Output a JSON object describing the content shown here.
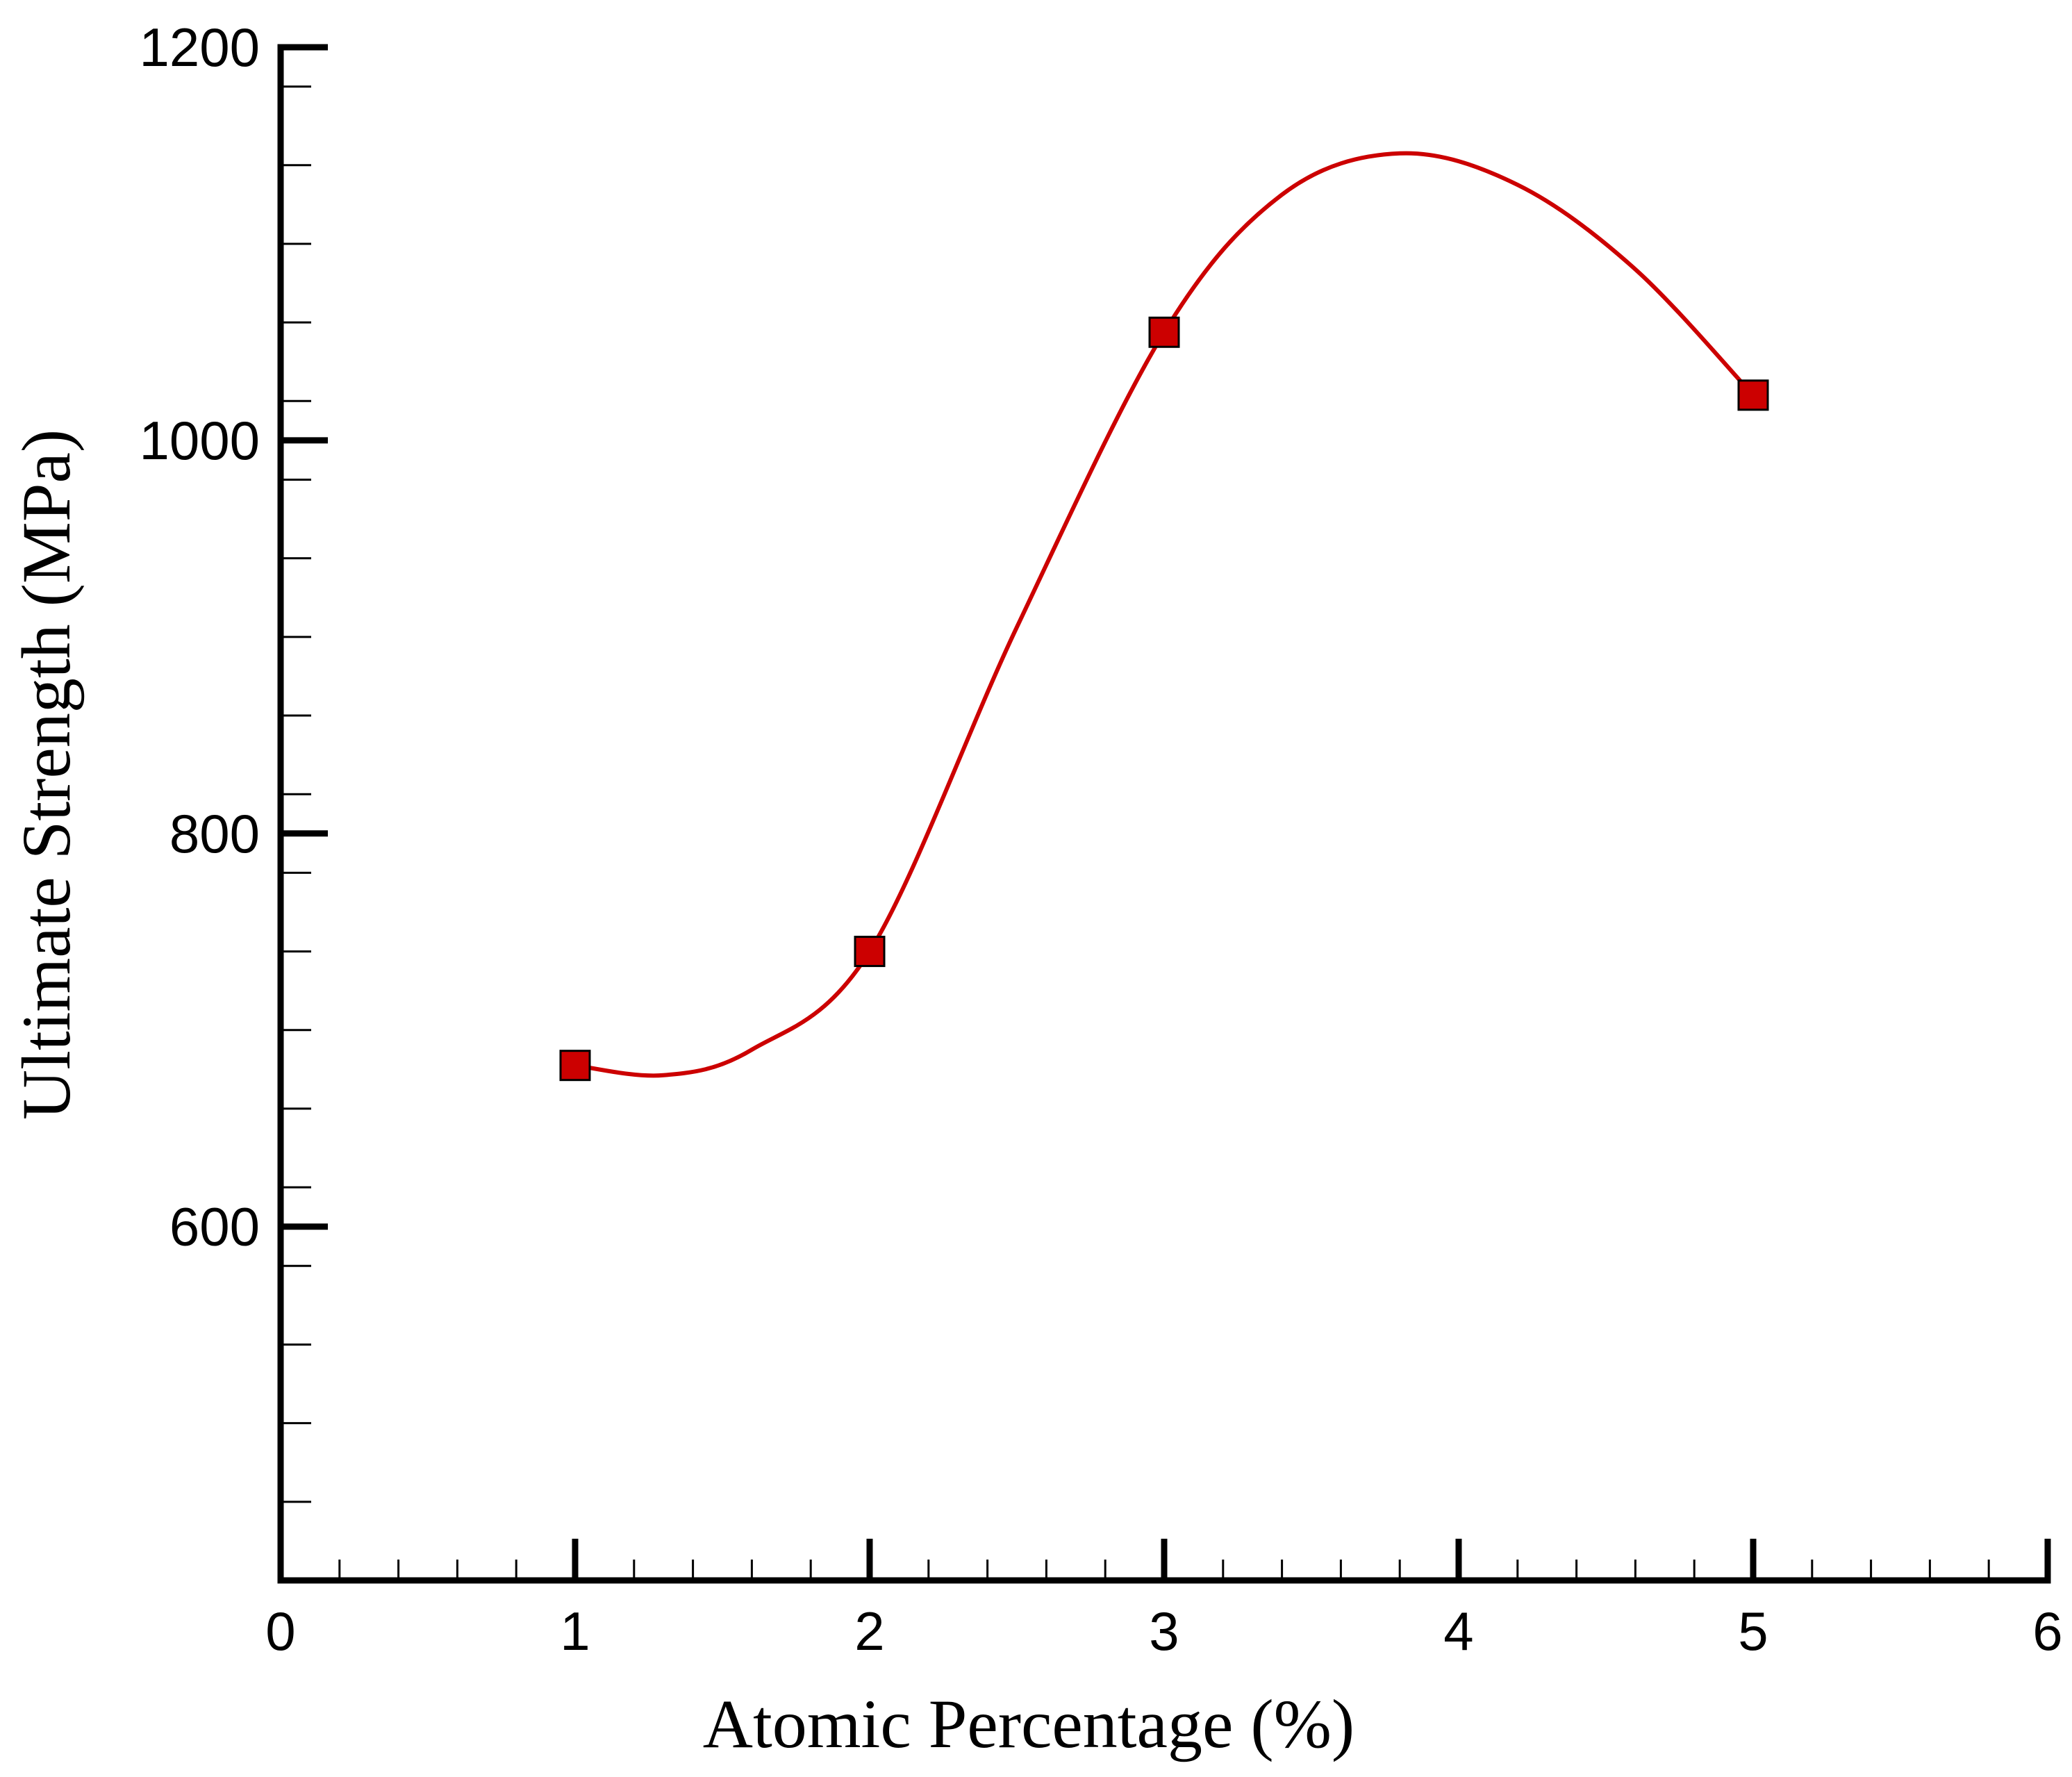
{
  "chart_data": {
    "type": "line",
    "title": "",
    "xlabel": "Atomic Percentage (%)",
    "ylabel": "Ultimate Strength (MPa)",
    "xlim": [
      0,
      6
    ],
    "ylim": [
      420,
      1200
    ],
    "x_ticks": [
      0,
      1,
      2,
      3,
      4,
      5,
      6
    ],
    "x_tick_labels": [
      "0",
      "1",
      "2",
      "3",
      "4",
      "5",
      "6"
    ],
    "x_minor_step": 0.2,
    "y_ticks": [
      600,
      800,
      1000,
      1200
    ],
    "y_tick_labels": [
      "600",
      "800",
      "1000",
      "1200"
    ],
    "y_minor_step": 40,
    "grid": false,
    "series": [
      {
        "name": "Ultimate Strength",
        "color": "#cc0000",
        "marker": "square",
        "marker_fill": "#cc0000",
        "marker_edge": "#000000",
        "x": [
          1,
          2,
          3,
          5
        ],
        "y": [
          682,
          740,
          1055,
          1023
        ]
      }
    ],
    "smooth_curve": {
      "color": "#cc0000",
      "x": [
        1.0,
        1.3,
        1.6,
        2.0,
        2.5,
        3.0,
        3.4,
        3.8,
        4.2,
        4.6,
        5.0
      ],
      "y": [
        682,
        677,
        690,
        740,
        905,
        1055,
        1125,
        1146,
        1130,
        1087,
        1023
      ]
    }
  }
}
